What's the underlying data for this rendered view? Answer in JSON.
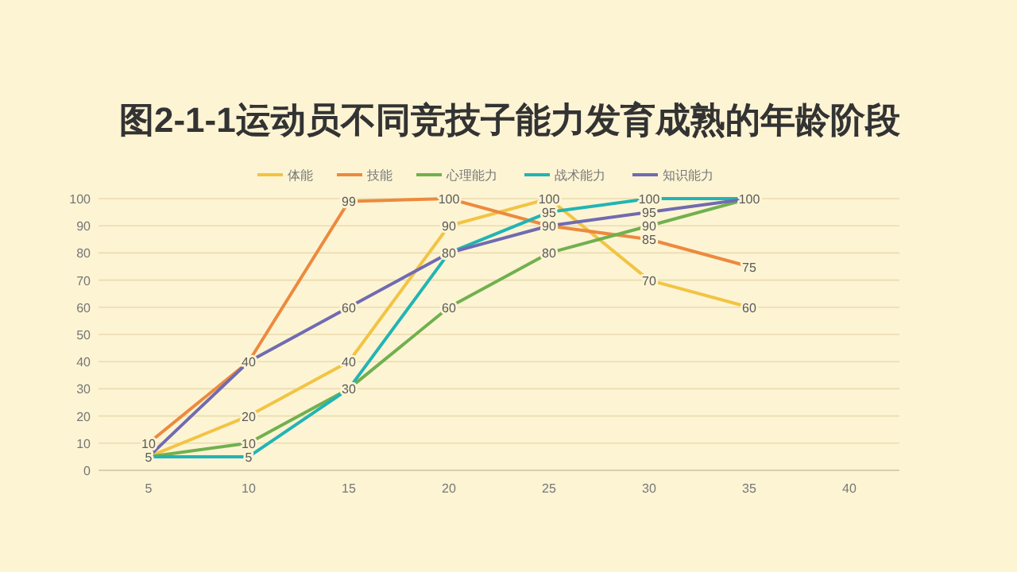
{
  "chart_data": {
    "type": "line",
    "title": "图2-1-1运动员不同竞技子能力发育成熟的年龄阶段",
    "categories": [
      "5",
      "10",
      "15",
      "20",
      "25",
      "30",
      "35",
      "40"
    ],
    "series": [
      {
        "name": "体能",
        "color": "#f2c443",
        "values": [
          5,
          20,
          40,
          90,
          100,
          70,
          60,
          null
        ],
        "value_labels": [
          "5",
          "20",
          "40",
          "90",
          "100",
          "70",
          "60",
          null
        ]
      },
      {
        "name": "技能",
        "color": "#ec8a3e",
        "values": [
          10,
          40,
          99,
          100,
          90,
          85,
          75,
          null
        ],
        "value_labels": [
          "10",
          "40",
          "99",
          "100",
          "90",
          "85",
          "75",
          null
        ]
      },
      {
        "name": "心理能力",
        "color": "#71b04f",
        "values": [
          5,
          10,
          30,
          60,
          80,
          90,
          100,
          null
        ],
        "value_labels": [
          null,
          "10",
          "30",
          "60",
          "80",
          "90",
          "100",
          null
        ]
      },
      {
        "name": "战术能力",
        "color": "#22b4b4",
        "values": [
          5,
          5,
          30,
          80,
          95,
          100,
          100,
          null
        ],
        "value_labels": [
          null,
          "5",
          null,
          "80",
          "95",
          "100",
          null,
          null
        ]
      },
      {
        "name": "知识能力",
        "color": "#706bb0",
        "values": [
          5,
          40,
          60,
          80,
          90,
          95,
          100,
          null
        ],
        "value_labels": [
          null,
          null,
          "60",
          null,
          null,
          "95",
          null,
          null
        ]
      }
    ],
    "ylim": [
      0,
      100
    ],
    "yticks": [
      0,
      10,
      20,
      30,
      40,
      50,
      60,
      70,
      80,
      90,
      100
    ],
    "grid": "y",
    "legend": "top",
    "marker": "none",
    "line_style": "solid"
  }
}
